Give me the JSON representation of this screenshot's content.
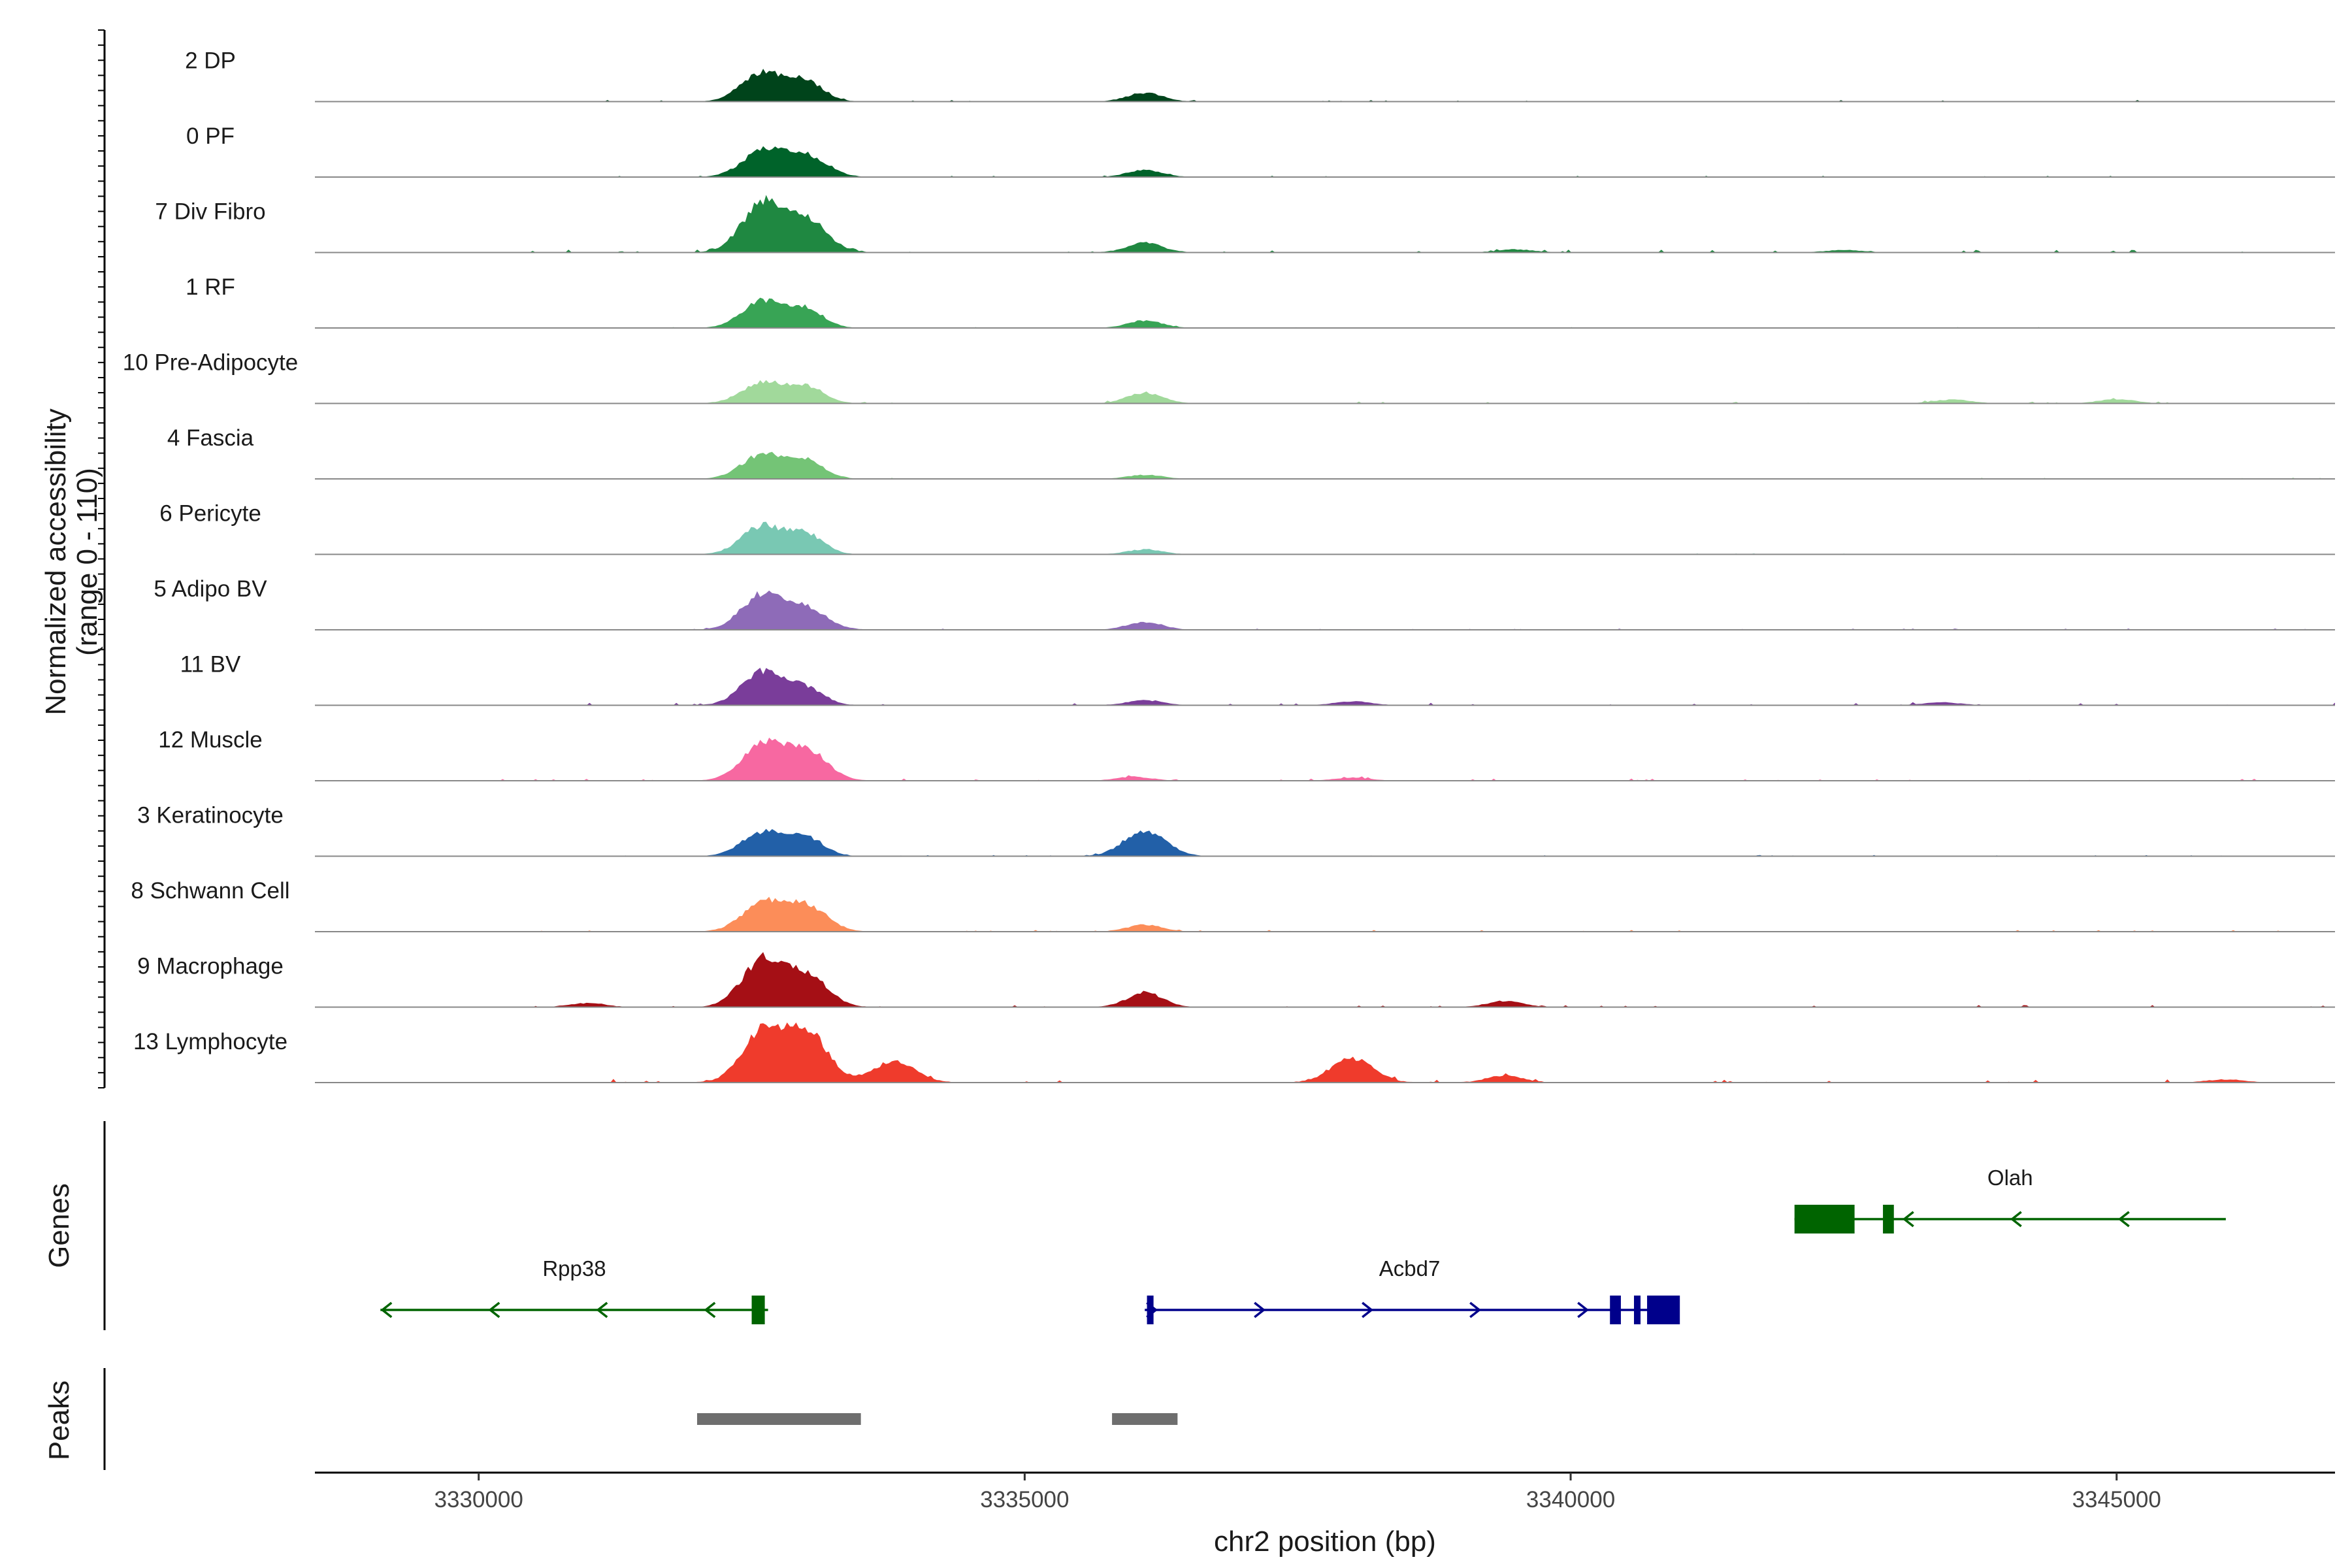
{
  "chart_data": {
    "type": "area",
    "ylabel": "Normalized accessibility\n(range 0 - 110)",
    "y_range": [
      0,
      110
    ],
    "xlabel": "chr2 position (bp)",
    "xlim": [
      3328500,
      3347000
    ],
    "x_ticks": [
      3330000,
      3335000,
      3340000,
      3345000
    ],
    "x_tick_labels": [
      "3330000",
      "3335000",
      "3340000",
      "3345000"
    ],
    "tracks": [
      {
        "label": "2 DP",
        "color": "#00441b",
        "peaks": [
          [
            3332600,
            60
          ],
          [
            3333000,
            40
          ],
          [
            3336100,
            18
          ]
        ],
        "noise": 0.9
      },
      {
        "label": "0 PF",
        "color": "#00632a",
        "peaks": [
          [
            3332600,
            52
          ],
          [
            3333000,
            42
          ],
          [
            3336100,
            14
          ]
        ],
        "noise": 0.7
      },
      {
        "label": "7 Div Fibro",
        "color": "#1f8841",
        "peaks": [
          [
            3332600,
            100
          ],
          [
            3333000,
            64
          ],
          [
            3336100,
            20
          ],
          [
            3339500,
            6
          ],
          [
            3342500,
            5
          ]
        ],
        "noise": 1.6
      },
      {
        "label": "1 RF",
        "color": "#38a455",
        "peaks": [
          [
            3332600,
            56
          ],
          [
            3333000,
            38
          ],
          [
            3336100,
            15
          ]
        ],
        "noise": 0.5
      },
      {
        "label": "10 Pre-Adipocyte",
        "color": "#a1d99b",
        "peaks": [
          [
            3332600,
            42
          ],
          [
            3333000,
            34
          ],
          [
            3336100,
            22
          ],
          [
            3343500,
            8
          ],
          [
            3345000,
            9
          ]
        ],
        "noise": 1.1
      },
      {
        "label": "4 Fascia",
        "color": "#74c476",
        "peaks": [
          [
            3332600,
            50
          ],
          [
            3333000,
            36
          ],
          [
            3336100,
            8
          ]
        ],
        "noise": 0.6
      },
      {
        "label": "6 Pericyte",
        "color": "#79c8b3",
        "peaks": [
          [
            3332600,
            58
          ],
          [
            3333000,
            40
          ],
          [
            3336100,
            10
          ]
        ],
        "noise": 0.6
      },
      {
        "label": "5 Adipo BV",
        "color": "#8e6bb8",
        "peaks": [
          [
            3332600,
            72
          ],
          [
            3333000,
            42
          ],
          [
            3336100,
            16
          ]
        ],
        "noise": 0.8
      },
      {
        "label": "11 BV",
        "color": "#7a3d9a",
        "peaks": [
          [
            3332600,
            68
          ],
          [
            3333000,
            34
          ],
          [
            3336100,
            10
          ],
          [
            3338000,
            8
          ],
          [
            3343400,
            6
          ]
        ],
        "noise": 1.5
      },
      {
        "label": "12 Muscle",
        "color": "#f768a1",
        "peaks": [
          [
            3332600,
            72
          ],
          [
            3333000,
            62
          ],
          [
            3336000,
            8
          ],
          [
            3338000,
            6
          ]
        ],
        "noise": 1.2
      },
      {
        "label": "3 Keratinocyte",
        "color": "#2260a8",
        "peaks": [
          [
            3332600,
            50
          ],
          [
            3333000,
            38
          ],
          [
            3336100,
            52
          ]
        ],
        "noise": 0.7
      },
      {
        "label": "8 Schwann Cell",
        "color": "#fc8d59",
        "peaks": [
          [
            3332600,
            58
          ],
          [
            3333000,
            52
          ],
          [
            3336100,
            14
          ]
        ],
        "noise": 1.0
      },
      {
        "label": "9 Macrophage",
        "color": "#a50f15",
        "peaks": [
          [
            3332600,
            96
          ],
          [
            3333000,
            64
          ],
          [
            3336100,
            30
          ],
          [
            3339400,
            12
          ],
          [
            3331000,
            8
          ]
        ],
        "noise": 1.5
      },
      {
        "label": "13 Lymphocyte",
        "color": "#ef3b2c",
        "peaks": [
          [
            3332600,
            100
          ],
          [
            3333000,
            104
          ],
          [
            3333800,
            44
          ],
          [
            3338000,
            50
          ],
          [
            3339400,
            14
          ],
          [
            3346000,
            6
          ]
        ],
        "noise": 2.0
      }
    ],
    "genes_panel_label": "Genes",
    "genes": [
      {
        "name": "Rpp38",
        "strand": "-",
        "color": "#006400",
        "row": 2,
        "start": 3329100,
        "end": 3332650,
        "exons": [
          [
            3332500,
            3332620
          ]
        ]
      },
      {
        "name": "Acbd7",
        "strand": "+",
        "color": "#00008b",
        "row": 2,
        "start": 3336100,
        "end": 3340950,
        "exons": [
          [
            3336120,
            3336180
          ],
          [
            3340360,
            3340460
          ],
          [
            3340580,
            3340640
          ],
          [
            3340700,
            3341000
          ]
        ]
      },
      {
        "name": "Olah",
        "strand": "-",
        "color": "#006400",
        "row": 1,
        "start": 3342050,
        "end": 3346000,
        "exons": [
          [
            3342050,
            3342600
          ],
          [
            3342860,
            3342960
          ]
        ]
      }
    ],
    "peaks_panel_label": "Peaks",
    "peak_regions": [
      [
        3332000,
        3333500
      ],
      [
        3335800,
        3336400
      ]
    ],
    "peak_color": "#6e6e6e"
  }
}
